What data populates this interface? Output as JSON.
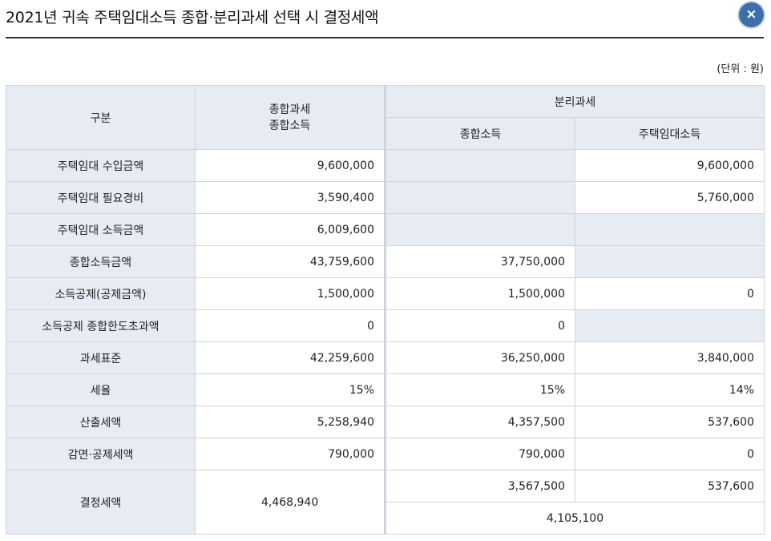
{
  "title": "2021년 귀속 주택임대소득 종합·분리과세 선택 시 결정세액",
  "close_icon": "×",
  "unit": "(단위 : 원)",
  "header": {
    "category": "구분",
    "comprehensive_line1": "종합과세",
    "comprehensive_line2": "종합소득",
    "separate": "분리과세",
    "separate_general": "종합소득",
    "separate_housing": "주택임대소득"
  },
  "rows": [
    {
      "label": "주택임대 수입금액",
      "comp": "9,600,000",
      "sep_general": "",
      "sep_housing": "9,600,000"
    },
    {
      "label": "주택임대 필요경비",
      "comp": "3,590,400",
      "sep_general": "",
      "sep_housing": "5,760,000"
    },
    {
      "label": "주택임대 소득금액",
      "comp": "6,009,600",
      "sep_general": "",
      "sep_housing": ""
    },
    {
      "label": "종합소득금액",
      "comp": "43,759,600",
      "sep_general": "37,750,000",
      "sep_housing": ""
    },
    {
      "label": "소득공제(공제금액)",
      "comp": "1,500,000",
      "sep_general": "1,500,000",
      "sep_housing": "0"
    },
    {
      "label": "소득공제 종합한도초과액",
      "comp": "0",
      "sep_general": "0",
      "sep_housing": ""
    },
    {
      "label": "과세표준",
      "comp": "42,259,600",
      "sep_general": "36,250,000",
      "sep_housing": "3,840,000"
    },
    {
      "label": "세율",
      "comp": "15%",
      "sep_general": "15%",
      "sep_housing": "14%"
    },
    {
      "label": "산출세액",
      "comp": "5,258,940",
      "sep_general": "4,357,500",
      "sep_housing": "537,600"
    },
    {
      "label": "감면·공제세액",
      "comp": "790,000",
      "sep_general": "790,000",
      "sep_housing": "0"
    }
  ],
  "final": {
    "label": "결정세액",
    "comp": "4,468,940",
    "sep_general": "3,567,500",
    "sep_housing": "537,600",
    "sep_total": "4,105,100"
  }
}
